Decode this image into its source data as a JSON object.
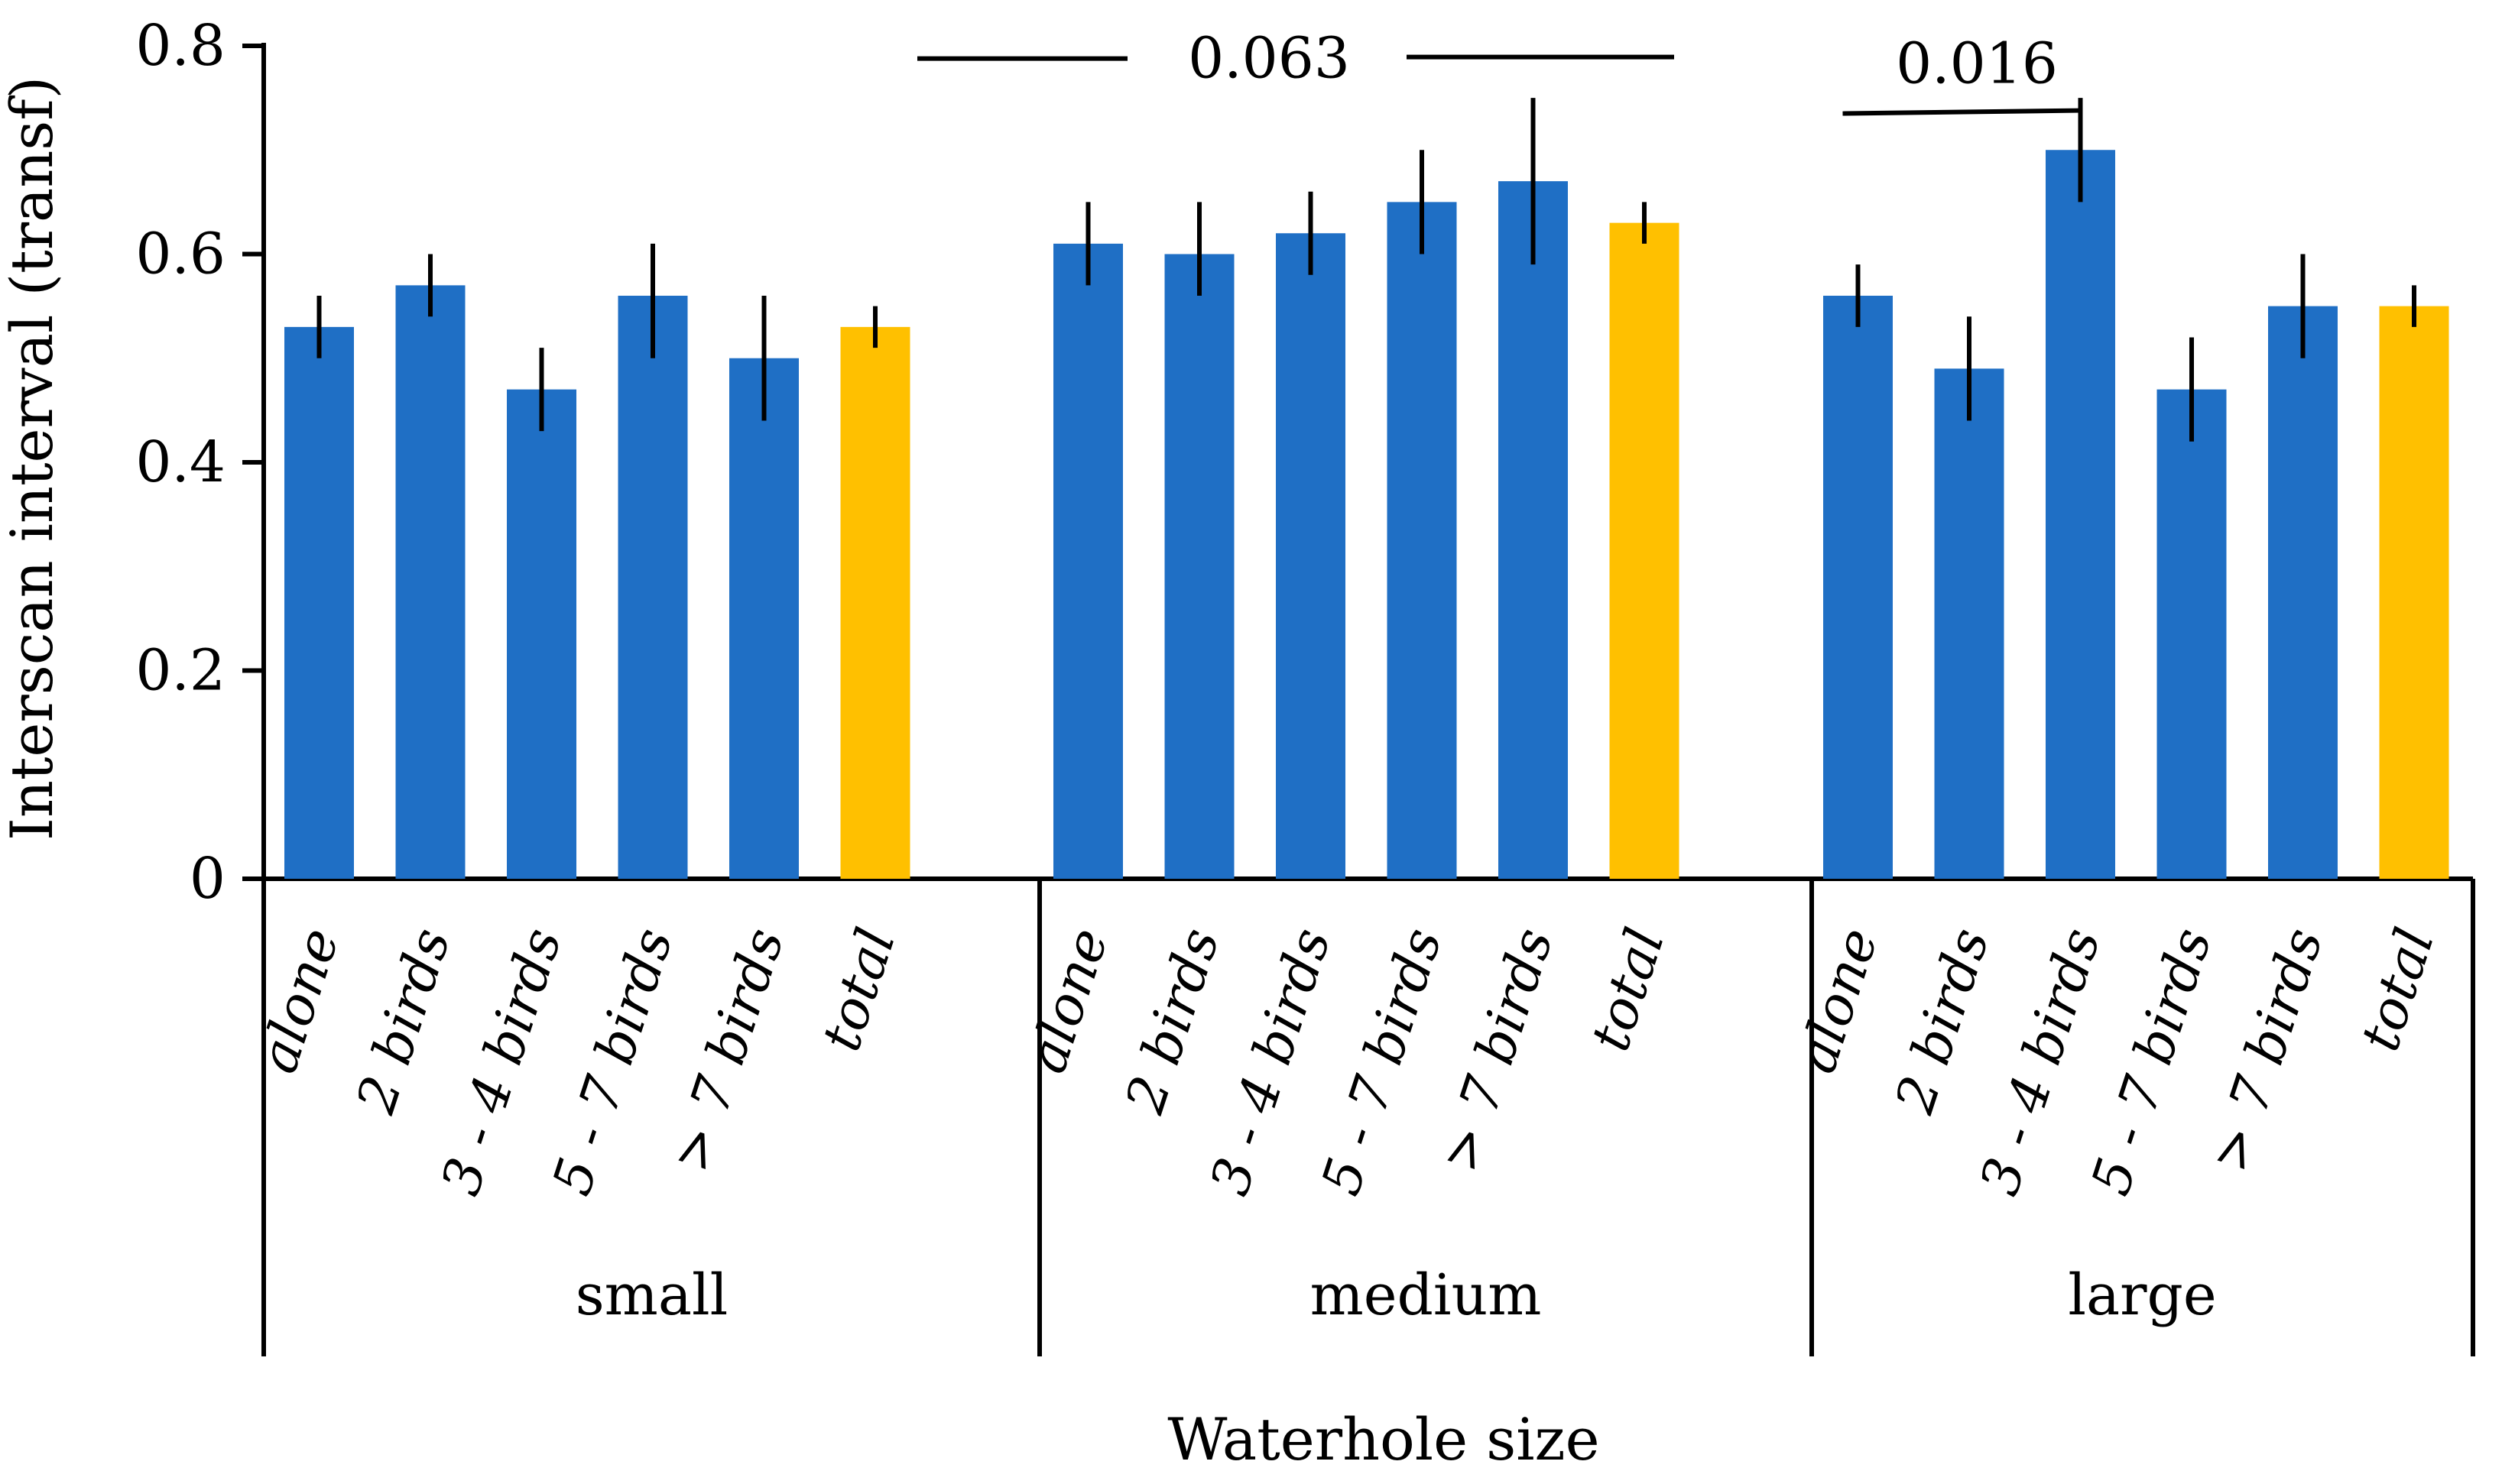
{
  "chart_data": {
    "type": "bar",
    "title": "",
    "xlabel": "Waterhole size",
    "ylabel": "Interscan interval (transf)",
    "ylim": [
      0,
      0.8
    ],
    "yticks": [
      "0",
      "0.2",
      "0.4",
      "0.6",
      "0.8"
    ],
    "grid": false,
    "legend": "none",
    "colors": {
      "group": "#1F6FC5",
      "total": "#FFC000",
      "axis": "#000000"
    },
    "categories": [
      "alone",
      "2 birds",
      "3 - 4 birds",
      "5 - 7 birds",
      "> 7 birds",
      "total"
    ],
    "groups": [
      {
        "name": "small",
        "values": [
          0.53,
          0.57,
          0.47,
          0.56,
          0.5,
          0.53
        ],
        "err_low": [
          0.5,
          0.54,
          0.43,
          0.5,
          0.44,
          0.51
        ],
        "err_high": [
          0.56,
          0.6,
          0.51,
          0.61,
          0.56,
          0.55
        ]
      },
      {
        "name": "medium",
        "values": [
          0.61,
          0.6,
          0.62,
          0.65,
          0.67,
          0.63
        ],
        "err_low": [
          0.57,
          0.56,
          0.58,
          0.6,
          0.59,
          0.61
        ],
        "err_high": [
          0.65,
          0.65,
          0.66,
          0.7,
          0.75,
          0.65
        ]
      },
      {
        "name": "large",
        "values": [
          0.56,
          0.49,
          0.7,
          0.47,
          0.55,
          0.55
        ],
        "err_low": [
          0.53,
          0.44,
          0.65,
          0.42,
          0.5,
          0.53
        ],
        "err_high": [
          0.59,
          0.54,
          0.75,
          0.52,
          0.6,
          0.57
        ]
      }
    ],
    "annotations": [
      {
        "label": "0.063",
        "from": "small",
        "to": "medium",
        "y": 0.7878
      },
      {
        "label": "0.016",
        "from": "large: alone",
        "to": "large: 3 - 4 birds",
        "y": 0.735
      }
    ]
  }
}
